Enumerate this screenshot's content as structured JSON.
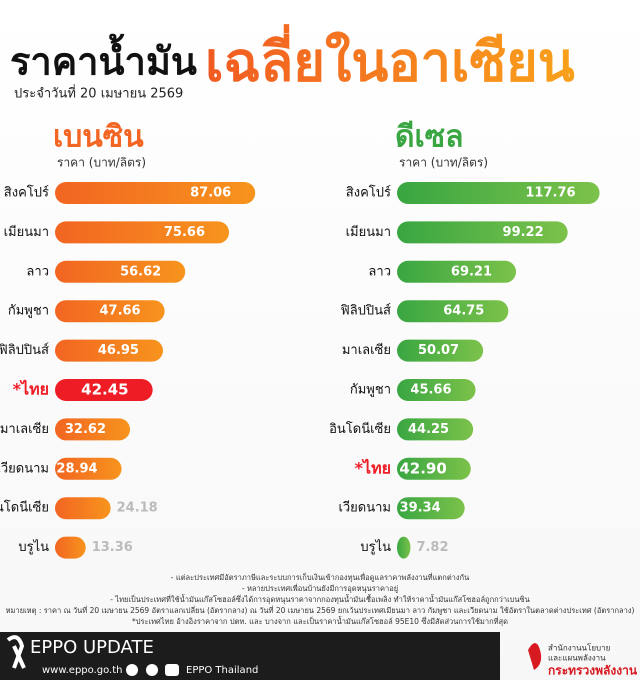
{
  "header": {
    "title": "ราคาน้ำมัน",
    "title_highlight": "เฉลี่ยในอาเซียน",
    "subtitle": "ประจำวันที่ 20 เมษายน 2569"
  },
  "chart_data": [
    {
      "type": "bar",
      "orientation": "horizontal",
      "title": "เบนซิน",
      "subtitle": "ราคา (บาท/ลิตร)",
      "color": "#f26522",
      "color_end": "#f7941d",
      "highlight_index": 5,
      "highlight_color": "#ee1c25",
      "categories": [
        "สิงคโปร์",
        "เมียนมา",
        "ลาว",
        "กัมพูชา",
        "ฟิลิปปินส์",
        "*ไทย",
        "มาเลเซีย",
        "เวียดนาม",
        "อินโดนีเซีย",
        "บรูไน"
      ],
      "values": [
        87.06,
        75.66,
        56.62,
        47.66,
        46.95,
        42.45,
        32.62,
        28.94,
        24.18,
        13.36
      ]
    },
    {
      "type": "bar",
      "orientation": "horizontal",
      "title": "ดีเซล",
      "subtitle": "ราคา (บาท/ลิตร)",
      "color": "#39a642",
      "color_end": "#7cc24a",
      "highlight_index": 7,
      "highlight_color": "#ee1c25",
      "categories": [
        "สิงคโปร์",
        "เมียนมา",
        "ลาว",
        "ฟิลิปปินส์",
        "มาเลเซีย",
        "กัมพูชา",
        "อินโดนีเซีย",
        "*ไทย",
        "เวียดนาม",
        "บรูไน"
      ],
      "values": [
        117.76,
        99.22,
        69.21,
        64.75,
        50.07,
        45.66,
        44.25,
        42.9,
        39.34,
        7.82
      ],
      "value_labels": [
        "117.76",
        "99.22",
        "69.21",
        "64.75",
        "50.07",
        "45.66",
        "44.25",
        "42.90",
        "39.34",
        "7.82"
      ]
    }
  ],
  "notes": [
    "- แต่ละประเทศมีอัตราภาษีและระบบการเก็บเงินเข้ากองทุนเพื่อดูแลราคาพลังงานที่แตกต่างกัน",
    "- หลายประเทศเพื่อนบ้านยังมีการอุดหนุนราคาอยู่",
    "- ไทยเป็นประเทศที่ใช้น้ำมันแก๊สโซฮอล์ซึ่งได้การอุดหนุนราคาจากกองทุนน้ำมันเชื้อเพลิง ทำให้ราคาน้ำมันแก๊สโซฮอล์ถูกกว่าเบนซิน",
    "หมายเหตุ : ราคา ณ วันที่ 20 เมษายน 2569 อัตราแลกเปลี่ยน (อัตรากลาง) ณ วันที่ 20 เมษายน 2569 ยกเว้นประเทศเมียนมา ลาว กัมพูชา และเวียดนาม ใช้อัตราในตลาดต่างประเทศ (อัตรากลาง)",
    "*ประเทศไทย อ้างอิงราคาจาก ปตท. และ บางจาก และเป็นราคาน้ำมันแก๊สโซฮอล์ 95E10 ซึ่งมีสัดส่วนการใช้มากที่สุด"
  ],
  "footer": {
    "brand": "EPPO UPDATE",
    "website": "www.eppo.go.th",
    "social": "EPPO Thailand",
    "org_line1": "สำนักงานนโยบาย",
    "org_line2": "และแผนพลังงาน",
    "ministry": "กระทรวงพลังงาน"
  }
}
